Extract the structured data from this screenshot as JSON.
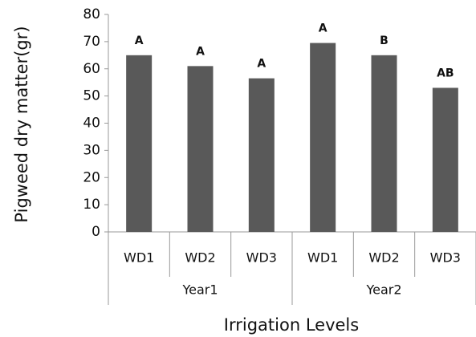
{
  "chart_data": {
    "type": "bar",
    "ylabel": "Pigweed dry matter(gr)",
    "xlabel": "Irrigation Levels",
    "categories": [
      "WD1",
      "WD2",
      "WD3",
      "WD1",
      "WD2",
      "WD3"
    ],
    "groups": [
      "Year1",
      "Year2"
    ],
    "values": [
      65,
      61,
      56.5,
      69.5,
      65,
      53
    ],
    "annotations": [
      "A",
      "A",
      "A",
      "A",
      "B",
      "AB"
    ],
    "color": "#595959",
    "ylim": [
      0,
      80
    ],
    "yticks": [
      0,
      10,
      20,
      30,
      40,
      50,
      60,
      70,
      80
    ]
  }
}
